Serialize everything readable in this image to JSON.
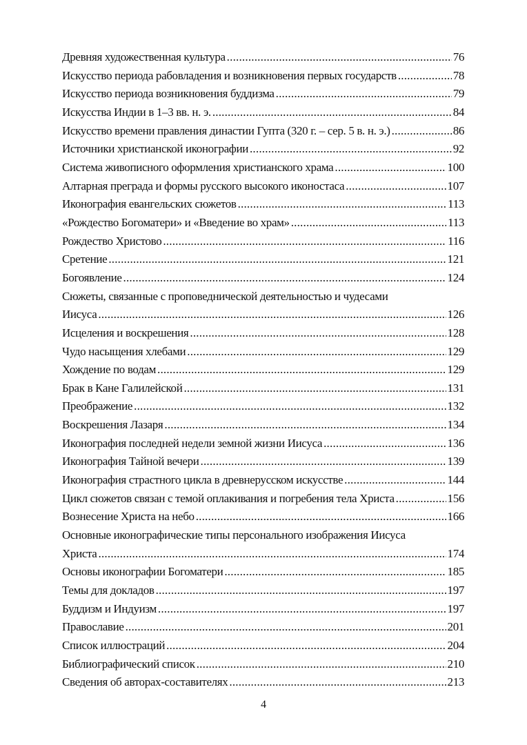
{
  "toc": [
    {
      "title": "Древняя художественная культура",
      "page": "76"
    },
    {
      "title": "Искусство периода рабовладения и возникновения первых государств",
      "page": "78"
    },
    {
      "title": "Искусство периода возникновения буддизма",
      "page": "79"
    },
    {
      "title": "Искусства Индии в 1–3 вв. н. э.",
      "page": "84"
    },
    {
      "title": "Искусство времени правления династии Гупта (320 г. – сер. 5 в. н. э.)",
      "page": "86"
    },
    {
      "title": "Источники христианской иконографии",
      "page": "92"
    },
    {
      "title": "Система живописного оформления христианского храма",
      "page": "100"
    },
    {
      "title": "Алтарная преграда и формы русского  высокого иконостаса",
      "page": "107"
    },
    {
      "title": "Иконография евангельских сюжетов",
      "page": "113"
    },
    {
      "title": "«Рождество Богоматери» и «Введение во храм»",
      "page": "113"
    },
    {
      "title": "Рождество Христово",
      "page": "116"
    },
    {
      "title": "Сретение",
      "page": "121"
    },
    {
      "title": "Богоявление",
      "page": "124"
    },
    {
      "title": "Сюжеты, связанные с проповеднической  деятельностью и чудесами",
      "page": ""
    },
    {
      "title": "Иисуса",
      "page": "126"
    },
    {
      "title": "Исцеления и воскрешения",
      "page": "128"
    },
    {
      "title": "Чудо насыщения хлебами",
      "page": "129"
    },
    {
      "title": "Хождение по водам",
      "page": "129"
    },
    {
      "title": "Брак в Кане Галилейской",
      "page": "131"
    },
    {
      "title": "Преображение",
      "page": "132"
    },
    {
      "title": "Воскрешения Лазаря",
      "page": "134"
    },
    {
      "title": "Иконография последней недели земной жизни Иисуса",
      "page": "136"
    },
    {
      "title": "Иконография Тайной вечери",
      "page": "139"
    },
    {
      "title": "Иконография страстного цикла в древнерусском искусстве",
      "page": "144"
    },
    {
      "title": "Цикл сюжетов связан с темой оплакивания и погребения тела Христа",
      "page": "156"
    },
    {
      "title": "Вознесение Христа на небо",
      "page": "166"
    },
    {
      "title": "Основные иконографические типы персонального  изображения Иисуса",
      "page": ""
    },
    {
      "title": "Христа",
      "page": "174"
    },
    {
      "title": "Основы иконографии Богоматери",
      "page": "185"
    },
    {
      "title": "Темы для докладов",
      "page": "197"
    },
    {
      "title": "Буддизм и Индуизм",
      "page": "197"
    },
    {
      "title": "Православие",
      "page": "201"
    },
    {
      "title": "Список иллюстраций",
      "page": "204"
    },
    {
      "title": "Библиографический список",
      "page": "210"
    },
    {
      "title": "Сведения об авторах-составителях",
      "page": "213"
    }
  ],
  "page_number": "4"
}
